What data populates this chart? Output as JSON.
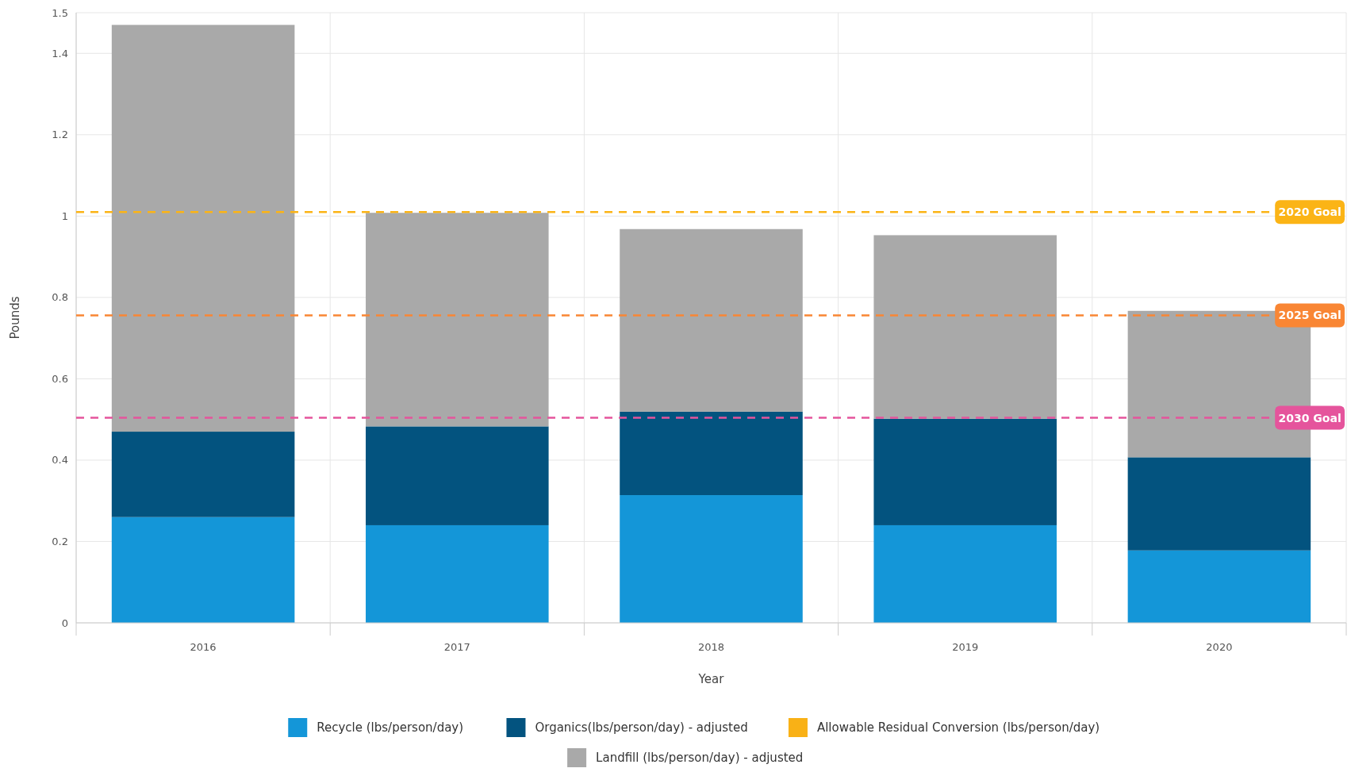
{
  "chart_data": {
    "type": "bar",
    "stacked": true,
    "xlabel": "Year",
    "ylabel": "Pounds",
    "categories": [
      "2016",
      "2017",
      "2018",
      "2019",
      "2020"
    ],
    "series": [
      {
        "name": "Recycle (lbs/person/day)",
        "color": "#1496d8",
        "values": [
          0.26,
          0.24,
          0.314,
          0.24,
          0.178
        ]
      },
      {
        "name": "Organics(lbs/person/day) - adjusted",
        "color": "#03537f",
        "values": [
          0.21,
          0.243,
          0.205,
          0.262,
          0.229
        ]
      },
      {
        "name": "Allowable Residual Conversion (lbs/person/day)",
        "color": "#f9b116",
        "values": [
          0,
          0,
          0,
          0,
          0
        ]
      },
      {
        "name": "Landfill (lbs/person/day) - adjusted",
        "color": "#a9a9a9",
        "values": [
          1.0,
          0.525,
          0.449,
          0.451,
          0.36
        ]
      }
    ],
    "ylim": [
      0,
      1.5
    ],
    "yticks": [
      0,
      0.2,
      0.4,
      0.6,
      0.8,
      1,
      1.2,
      1.4,
      1.5
    ],
    "ref_lines": [
      {
        "axis": "y",
        "value": 1.01,
        "label": "2020 Goal",
        "color": "#fbb416",
        "line_style": "dashed"
      },
      {
        "axis": "y",
        "value": 0.756,
        "label": "2025 Goal",
        "color": "#f98634",
        "line_style": "dashed"
      },
      {
        "axis": "y",
        "value": 0.504,
        "label": "2030 Goal",
        "color": "#e5549c",
        "line_style": "dashed"
      }
    ],
    "grid": true,
    "legend": "bottom"
  }
}
